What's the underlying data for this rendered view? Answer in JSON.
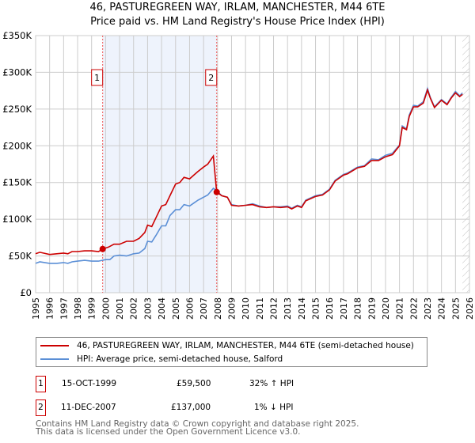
{
  "chart_data": {
    "type": "line",
    "title": "46, PASTUREGREEN WAY, IRLAM, MANCHESTER, M44 6TE",
    "subtitle": "Price paid vs. HM Land Registry's House Price Index (HPI)",
    "xlabel": "",
    "ylabel": "",
    "xlim": [
      1995,
      2026
    ],
    "ylim": [
      0,
      350000
    ],
    "x_ticks": [
      "1995",
      "1996",
      "1997",
      "1998",
      "1999",
      "2000",
      "2001",
      "2002",
      "2003",
      "2004",
      "2005",
      "2006",
      "2007",
      "2008",
      "2009",
      "2010",
      "2011",
      "2012",
      "2013",
      "2014",
      "2015",
      "2016",
      "2017",
      "2018",
      "2019",
      "2020",
      "2021",
      "2022",
      "2023",
      "2024",
      "2025",
      "2026"
    ],
    "y_ticks": [
      {
        "v": 0,
        "label": "£0"
      },
      {
        "v": 50000,
        "label": "£50K"
      },
      {
        "v": 100000,
        "label": "£100K"
      },
      {
        "v": 150000,
        "label": "£150K"
      },
      {
        "v": 200000,
        "label": "£200K"
      },
      {
        "v": 250000,
        "label": "£250K"
      },
      {
        "v": 300000,
        "label": "£300K"
      },
      {
        "v": 350000,
        "label": "£350K"
      }
    ],
    "grid": true,
    "shaded_range": [
      1999.79,
      2007.94
    ],
    "forecast_hatch_from": 2025.5,
    "series": [
      {
        "name": "46, PASTUREGREEN WAY, IRLAM, MANCHESTER, M44 6TE (semi-detached house)",
        "color": "#cc0000",
        "x": [
          1995,
          1995.3,
          1996,
          1996.5,
          1997,
          1997.3,
          1997.6,
          1998,
          1998.5,
          1999,
          1999.5,
          1999.79,
          2000.2,
          2000.6,
          2001,
          2001.5,
          2002,
          2002.4,
          2002.8,
          2003,
          2003.3,
          2003.6,
          2004,
          2004.3,
          2004.6,
          2005,
          2005.3,
          2005.6,
          2006,
          2006.3,
          2006.6,
          2007,
          2007.3,
          2007.7,
          2007.94,
          2008.3,
          2008.7,
          2009,
          2009.5,
          2010,
          2010.5,
          2011,
          2011.5,
          2012,
          2012.5,
          2013,
          2013.3,
          2013.7,
          2014,
          2014.3,
          2015,
          2015.5,
          2016,
          2016.4,
          2017,
          2017.3,
          2018,
          2018.5,
          2019,
          2019.5,
          2020,
          2020.5,
          2021,
          2021.2,
          2021.5,
          2021.7,
          2022,
          2022.3,
          2022.7,
          2023,
          2023.2,
          2023.5,
          2024,
          2024.4,
          2024.7,
          2025,
          2025.3,
          2025.5
        ],
        "y": [
          53000,
          55000,
          52000,
          53000,
          54000,
          53000,
          56000,
          56000,
          57000,
          57000,
          56000,
          59500,
          62000,
          66000,
          66000,
          70000,
          70000,
          74000,
          82000,
          92000,
          90000,
          102000,
          118000,
          120000,
          132000,
          148000,
          150000,
          157000,
          155000,
          160000,
          165000,
          171000,
          175000,
          186000,
          137000,
          132000,
          130000,
          119000,
          118000,
          119000,
          120000,
          117000,
          116000,
          117000,
          116000,
          117000,
          114000,
          118000,
          116000,
          125000,
          131000,
          133000,
          140000,
          152000,
          160000,
          162000,
          170000,
          172000,
          180000,
          180000,
          185000,
          188000,
          200000,
          225000,
          222000,
          240000,
          253000,
          253000,
          258000,
          276000,
          265000,
          252000,
          262000,
          256000,
          265000,
          272000,
          267000,
          270000
        ]
      },
      {
        "name": "HPI: Average price, semi-detached house, Salford",
        "color": "#5b8fd6",
        "x": [
          1995,
          1995.3,
          1996,
          1996.5,
          1997,
          1997.3,
          1997.6,
          1998,
          1998.5,
          1999,
          1999.5,
          2000,
          2000.3,
          2000.6,
          2001,
          2001.5,
          2002,
          2002.4,
          2002.8,
          2003,
          2003.3,
          2003.6,
          2004,
          2004.3,
          2004.6,
          2005,
          2005.3,
          2005.6,
          2006,
          2006.3,
          2006.6,
          2007,
          2007.3,
          2007.7,
          2007.94,
          2008.3,
          2008.7,
          2009,
          2009.5,
          2010,
          2010.5,
          2011,
          2011.5,
          2012,
          2012.5,
          2013,
          2013.3,
          2013.7,
          2014,
          2014.3,
          2015,
          2015.5,
          2016,
          2016.4,
          2017,
          2017.3,
          2018,
          2018.5,
          2019,
          2019.5,
          2020,
          2020.5,
          2021,
          2021.2,
          2021.5,
          2021.7,
          2022,
          2022.3,
          2022.7,
          2023,
          2023.2,
          2023.5,
          2024,
          2024.4,
          2024.7,
          2025,
          2025.3,
          2025.5
        ],
        "y": [
          40000,
          42000,
          40000,
          40000,
          41000,
          40000,
          42000,
          43000,
          44000,
          43000,
          43000,
          45000,
          45000,
          50000,
          51000,
          50000,
          53000,
          54000,
          60000,
          70000,
          69000,
          78000,
          91000,
          91000,
          105000,
          113000,
          113000,
          120000,
          118000,
          122000,
          126000,
          130000,
          133000,
          142000,
          139000,
          132000,
          130000,
          120000,
          118000,
          119000,
          121000,
          118000,
          116000,
          117000,
          117000,
          118000,
          115000,
          119000,
          117000,
          126000,
          132000,
          134000,
          141000,
          153000,
          161000,
          163000,
          171000,
          173000,
          182000,
          181000,
          187000,
          190000,
          201000,
          227000,
          223000,
          242000,
          255000,
          254000,
          260000,
          278000,
          266000,
          253000,
          263000,
          257000,
          266000,
          274000,
          268000,
          272000
        ]
      }
    ],
    "sales": [
      {
        "label": "1",
        "x": 1999.79,
        "y": 59500
      },
      {
        "label": "2",
        "x": 2007.94,
        "y": 137000
      }
    ]
  },
  "legend": {
    "property": "46, PASTUREGREEN WAY, IRLAM, MANCHESTER, M44 6TE (semi-detached house)",
    "hpi": "HPI: Average price, semi-detached house, Salford"
  },
  "transactions": [
    {
      "num": "1",
      "date": "15-OCT-1999",
      "price": "£59,500",
      "hpi": "32% ↑ HPI"
    },
    {
      "num": "2",
      "date": "11-DEC-2007",
      "price": "£137,000",
      "hpi": "1% ↓ HPI"
    }
  ],
  "footer": {
    "line1": "Contains HM Land Registry data © Crown copyright and database right 2025.",
    "line2": "This data is licensed under the Open Government Licence v3.0."
  }
}
